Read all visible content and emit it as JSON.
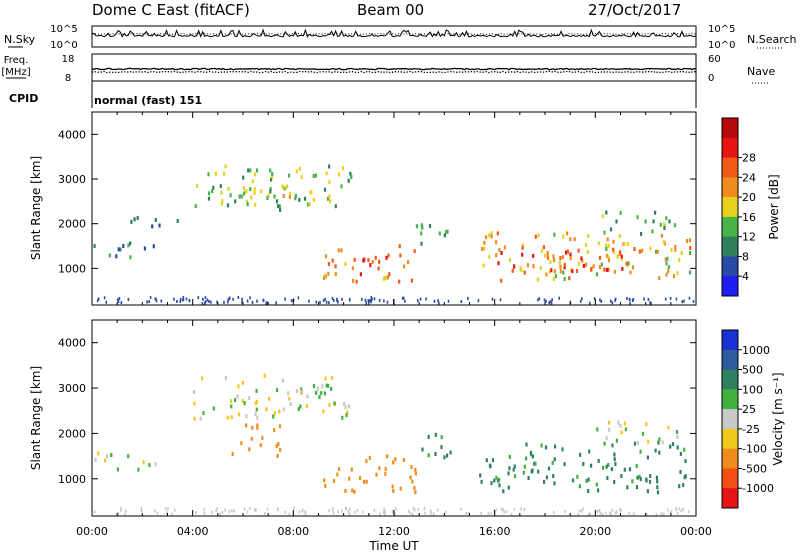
{
  "header": {
    "station": "Dome C East (fitACF)",
    "beam": "Beam 00",
    "date": "27/Oct/2017"
  },
  "strips": {
    "nsky_label": "N.Sky",
    "nsky_ticks": [
      "10^5",
      "10^0"
    ],
    "nsearch_label": "N.Search",
    "nsearch_ticks": [
      "10^5",
      "10^0"
    ],
    "freq_label_1": "Freq.",
    "freq_label_2": "[MHz]",
    "freq_ticks": [
      "18",
      "8"
    ],
    "nave_label": "Nave",
    "nave_ticks": [
      "60",
      "0"
    ],
    "cpid_label": "CPID",
    "cpid_value": "normal (fast) 151"
  },
  "colors": {
    "power_scale": [
      "#1e1ef0",
      "#2a4aa8",
      "#2f7f5c",
      "#46b446",
      "#e6d21e",
      "#f08c1e",
      "#f05a14",
      "#e61414",
      "#b40a0a"
    ],
    "velocity_scale": [
      "#1a2fd4",
      "#2e5aa0",
      "#2e8060",
      "#40b040",
      "#c8c8c8",
      "#f0c81e",
      "#f08c1e",
      "#f05014",
      "#e61414"
    ]
  },
  "chart_data": [
    {
      "type": "heatmap",
      "name": "power",
      "ylabel": "Slant Range [km]",
      "xlabel": "",
      "ylim": [
        180,
        4500
      ],
      "yticks": [
        "1000",
        "2000",
        "3000",
        "4000"
      ],
      "colorbar_label": "Power [dB]",
      "colorbar_ticks": [
        "4",
        "8",
        "12",
        "16",
        "20",
        "24",
        "28"
      ],
      "echo_regions": [
        {
          "t_start": "00:00",
          "t_end": "02:30",
          "range_km": [
            1200,
            1600
          ],
          "level_db": 6
        },
        {
          "t_start": "01:30",
          "t_end": "03:30",
          "range_km": [
            1900,
            2200
          ],
          "level_db": 6
        },
        {
          "t_start": "04:00",
          "t_end": "10:20",
          "range_km": [
            2300,
            3300
          ],
          "level_db": 12
        },
        {
          "t_start": "05:00",
          "t_end": "08:30",
          "range_km": [
            2500,
            2900
          ],
          "level_db": 14
        },
        {
          "t_start": "09:10",
          "t_end": "12:50",
          "range_km": [
            700,
            1500
          ],
          "level_db": 22
        },
        {
          "t_start": "10:30",
          "t_end": "11:50",
          "range_km": [
            850,
            1250
          ],
          "level_db": 27
        },
        {
          "t_start": "12:50",
          "t_end": "14:20",
          "range_km": [
            1400,
            2000
          ],
          "level_db": 10
        },
        {
          "t_start": "15:20",
          "t_end": "23:55",
          "range_km": [
            700,
            1800
          ],
          "level_db": 18
        },
        {
          "t_start": "16:00",
          "t_end": "22:00",
          "range_km": [
            900,
            1500
          ],
          "level_db": 24
        },
        {
          "t_start": "20:00",
          "t_end": "23:20",
          "range_km": [
            1750,
            2250
          ],
          "level_db": 11
        }
      ]
    },
    {
      "type": "heatmap",
      "name": "velocity",
      "ylabel": "Slant Range [km]",
      "xlabel": "Time UT",
      "ylim": [
        180,
        4500
      ],
      "yticks": [
        "1000",
        "2000",
        "3000",
        "4000"
      ],
      "xticks": [
        "00:00",
        "04:00",
        "08:00",
        "12:00",
        "16:00",
        "20:00",
        "00:00"
      ],
      "colorbar_label": "Velocity [m s⁻¹]",
      "colorbar_ticks": [
        "1000",
        "500",
        "100",
        "25",
        "-25",
        "-100",
        "-500",
        "-1000"
      ],
      "echo_regions": [
        {
          "t_start": "00:00",
          "t_end": "02:30",
          "range_km": [
            1200,
            1600
          ],
          "velocity": 0
        },
        {
          "t_start": "04:00",
          "t_end": "10:20",
          "range_km": [
            2300,
            3300
          ],
          "velocity": 0
        },
        {
          "t_start": "05:30",
          "t_end": "07:30",
          "range_km": [
            1500,
            2200
          ],
          "velocity": -200
        },
        {
          "t_start": "09:10",
          "t_end": "12:50",
          "range_km": [
            700,
            1500
          ],
          "velocity": -250
        },
        {
          "t_start": "12:50",
          "t_end": "14:20",
          "range_km": [
            1400,
            2000
          ],
          "velocity": 150
        },
        {
          "t_start": "15:20",
          "t_end": "23:55",
          "range_km": [
            700,
            1800
          ],
          "velocity": 150
        },
        {
          "t_start": "20:00",
          "t_end": "23:20",
          "range_km": [
            1750,
            2250
          ],
          "velocity": 0
        }
      ]
    }
  ]
}
